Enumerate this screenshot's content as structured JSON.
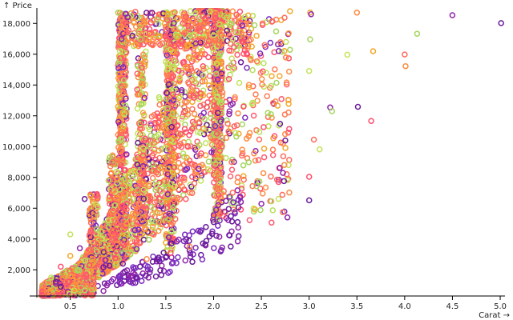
{
  "chart_data": {
    "type": "scatter",
    "title": "",
    "xlabel": "Carat →",
    "ylabel": "↑ Price",
    "xlim": [
      0.15,
      5.05
    ],
    "ylim": [
      300,
      19000
    ],
    "x_ticks": [
      0.5,
      1.0,
      1.5,
      2.0,
      2.5,
      3.0,
      3.5,
      4.0,
      4.5,
      5.0
    ],
    "x_tick_labels": [
      "0.5",
      "1.0",
      "1.5",
      "2.0",
      "2.5",
      "3.0",
      "3.5",
      "4.0",
      "4.5",
      "5.0"
    ],
    "y_ticks": [
      2000,
      4000,
      6000,
      8000,
      10000,
      12000,
      14000,
      16000,
      18000
    ],
    "y_tick_labels": [
      "2,000",
      "4,000",
      "6,000",
      "8,000",
      "10,000",
      "12,000",
      "14,000",
      "16,000",
      "18,000"
    ],
    "grid": false,
    "legend": "none",
    "marker": "hollow circle",
    "palette": [
      "#6a1b9a",
      "#8e24aa",
      "#a4d65e",
      "#c3e35a",
      "#f4a62a",
      "#ff8c42",
      "#ff6a5b",
      "#ff4d6d"
    ],
    "series": [
      {
        "points": [
          [
            5.01,
            18018
          ],
          [
            4.5,
            18531
          ],
          [
            4.13,
            17329
          ],
          [
            3.4,
            15964
          ],
          [
            3.67,
            16193
          ],
          [
            4.01,
            15223
          ],
          [
            4.0,
            15984
          ],
          [
            3.65,
            11668
          ],
          [
            3.51,
            12587
          ],
          [
            3.22,
            12545
          ],
          [
            3.24,
            12300
          ],
          [
            3.11,
            9823
          ],
          [
            3.01,
            18710
          ],
          [
            3.5,
            18701
          ],
          [
            3.05,
            10453
          ],
          [
            3.0,
            8040
          ],
          [
            3.0,
            6512
          ],
          [
            3.02,
            18593
          ],
          [
            3.01,
            16970
          ],
          [
            3.0,
            14910
          ],
          [
            2.8,
            18790
          ],
          [
            2.74,
            8807
          ],
          [
            2.72,
            6870
          ],
          [
            2.68,
            7700
          ],
          [
            2.75,
            10400
          ],
          [
            2.5,
            6290
          ],
          [
            2.6,
            12100
          ],
          [
            2.55,
            14800
          ],
          [
            2.45,
            17200
          ],
          [
            2.3,
            9800
          ],
          [
            2.2,
            7010
          ],
          [
            2.1,
            5500
          ],
          [
            2.0,
            5100
          ],
          [
            2.05,
            6200
          ],
          [
            2.02,
            8900
          ],
          [
            2.2,
            15000
          ],
          [
            2.4,
            16500
          ],
          [
            1.75,
            3500
          ],
          [
            1.6,
            5300
          ],
          [
            1.55,
            3100
          ],
          [
            1.5,
            2800
          ],
          [
            1.52,
            6900
          ],
          [
            1.5,
            11800
          ],
          [
            1.5,
            15500
          ],
          [
            1.52,
            18600
          ],
          [
            1.3,
            2700
          ],
          [
            1.25,
            8200
          ],
          [
            1.2,
            13700
          ],
          [
            1.15,
            17200
          ],
          [
            1.1,
            18400
          ],
          [
            1.0,
            18700
          ],
          [
            1.02,
            16200
          ],
          [
            1.0,
            12600
          ],
          [
            1.0,
            9100
          ],
          [
            1.0,
            6500
          ],
          [
            1.0,
            4500
          ],
          [
            1.05,
            2400
          ],
          [
            0.95,
            1400
          ],
          [
            0.9,
            7800
          ],
          [
            0.9,
            5200
          ],
          [
            0.9,
            3500
          ],
          [
            0.75,
            5500
          ],
          [
            0.7,
            4200
          ],
          [
            0.7,
            2300
          ],
          [
            0.65,
            6600
          ],
          [
            0.6,
            3400
          ],
          [
            0.58,
            2000
          ],
          [
            0.5,
            4300
          ],
          [
            0.5,
            2900
          ],
          [
            0.5,
            1600
          ],
          [
            0.45,
            1200
          ],
          [
            0.4,
            2200
          ],
          [
            0.4,
            900
          ],
          [
            0.35,
            1100
          ],
          [
            0.32,
            750
          ],
          [
            0.3,
            1500
          ],
          [
            0.28,
            600
          ],
          [
            0.25,
            520
          ],
          [
            0.23,
            450
          ],
          [
            0.2,
            380
          ]
        ]
      }
    ]
  }
}
